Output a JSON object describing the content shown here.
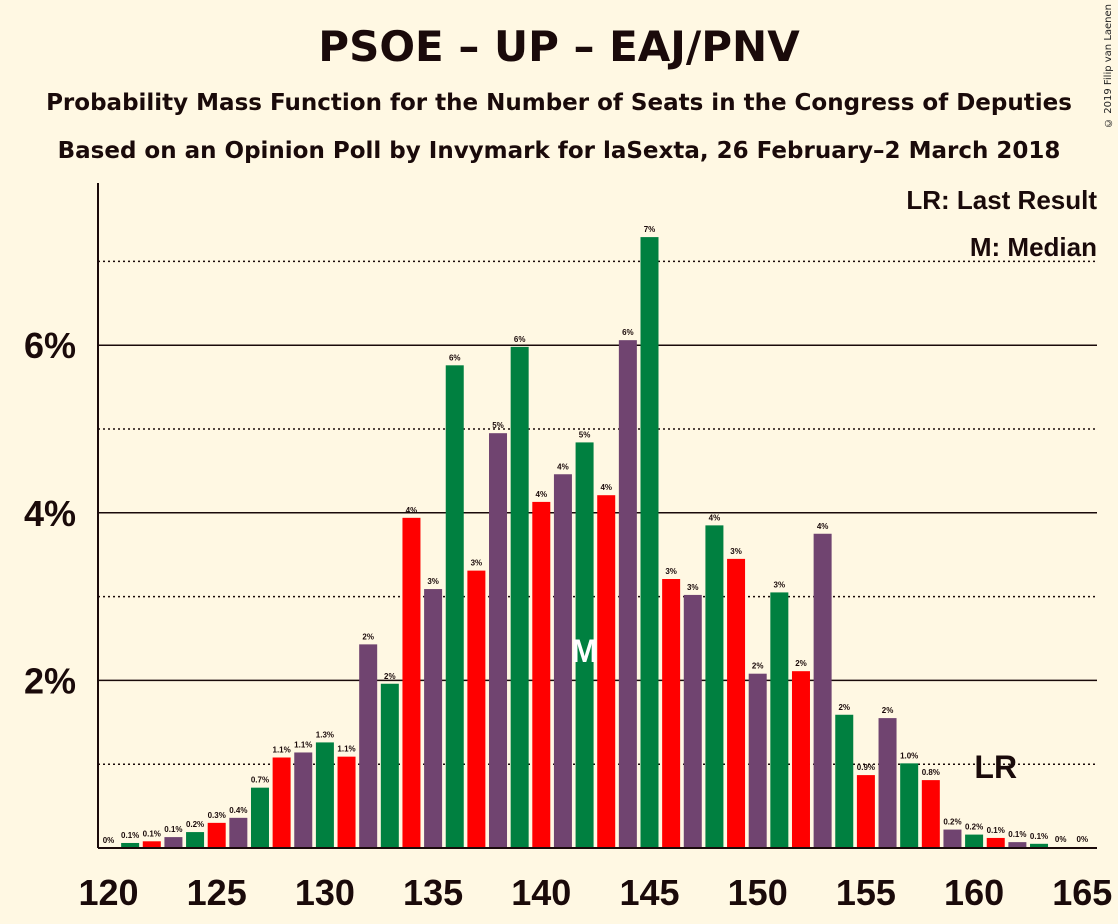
{
  "title": "PSOE – UP – EAJ/PNV",
  "subtitle": "Probability Mass Function for the Number of Seats in the Congress of Deputies",
  "subtitle2": "Based on an Opinion Poll by Invymark for laSexta, 26 February–2 March 2018",
  "copyright": "© 2019 Filip van Laenen",
  "legend": {
    "lr": "LR: Last Result",
    "m": "M: Median"
  },
  "markers": {
    "median_label": "M",
    "median_seat": 142,
    "lr_label": "LR",
    "lr_seat": 161
  },
  "colors": {
    "background": "#fff8e3",
    "purple": "#704470",
    "green": "#008040",
    "red": "#ff0000",
    "text": "#1a0a0a"
  },
  "chart_data": {
    "type": "bar",
    "xlabel": "",
    "ylabel": "",
    "xlim": [
      120,
      165
    ],
    "ylim": [
      0,
      7.8
    ],
    "x_ticks": [
      120,
      125,
      130,
      135,
      140,
      145,
      150,
      155,
      160,
      165
    ],
    "y_ticks": [
      {
        "value": 2,
        "label": "2%"
      },
      {
        "value": 4,
        "label": "4%"
      },
      {
        "value": 6,
        "label": "6%"
      }
    ],
    "dotted_grid": [
      1,
      3,
      5,
      7
    ],
    "color_cycle": [
      "purple",
      "green",
      "red"
    ],
    "seats": [
      120,
      121,
      122,
      123,
      124,
      125,
      126,
      127,
      128,
      129,
      130,
      131,
      132,
      133,
      134,
      135,
      136,
      137,
      138,
      139,
      140,
      141,
      142,
      143,
      144,
      145,
      146,
      147,
      148,
      149,
      150,
      151,
      152,
      153,
      154,
      155,
      156,
      157,
      158,
      159,
      160,
      161,
      162,
      163,
      164,
      165
    ],
    "values": [
      0.0,
      0.06,
      0.08,
      0.13,
      0.19,
      0.3,
      0.36,
      0.72,
      1.08,
      1.14,
      1.26,
      1.09,
      2.43,
      1.96,
      3.94,
      3.09,
      5.76,
      3.31,
      4.95,
      5.98,
      4.13,
      4.46,
      4.84,
      4.21,
      6.06,
      7.29,
      3.21,
      3.02,
      3.85,
      3.45,
      2.08,
      3.05,
      2.11,
      3.75,
      1.59,
      0.87,
      1.55,
      1.01,
      0.81,
      0.22,
      0.16,
      0.12,
      0.07,
      0.05,
      0.01,
      0.01
    ],
    "labels": [
      "0%",
      "0.1%",
      "0.1%",
      "0.1%",
      "0.2%",
      "0.3%",
      "0.4%",
      "0.7%",
      "1.1%",
      "1.1%",
      "1.3%",
      "1.1%",
      "2%",
      "2%",
      "4%",
      "3%",
      "6%",
      "3%",
      "5%",
      "6%",
      "4%",
      "4%",
      "5%",
      "4%",
      "6%",
      "7%",
      "3%",
      "3%",
      "4%",
      "3%",
      "2%",
      "3%",
      "2%",
      "4%",
      "2%",
      "0.9%",
      "2%",
      "1.0%",
      "0.8%",
      "0.2%",
      "0.2%",
      "0.1%",
      "0.1%",
      "0.1%",
      "0%",
      "0%"
    ]
  }
}
